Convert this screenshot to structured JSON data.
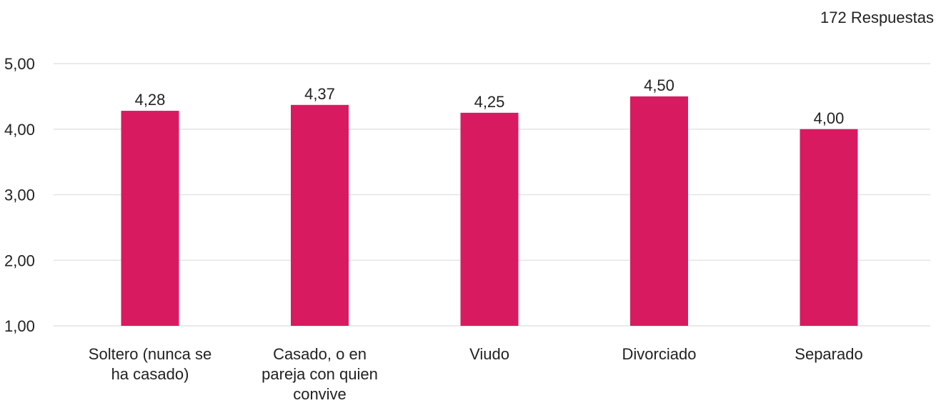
{
  "header": {
    "responses": "172 Respuestas"
  },
  "chart_data": {
    "type": "bar",
    "title": "",
    "xlabel": "",
    "ylabel": "",
    "categories": [
      [
        "Soltero (nunca se",
        "ha casado)"
      ],
      [
        "Casado, o en",
        "pareja con quien",
        "convive"
      ],
      [
        "Viudo"
      ],
      [
        "Divorciado"
      ],
      [
        "Separado"
      ]
    ],
    "values": [
      4.28,
      4.37,
      4.25,
      4.5,
      4.0
    ],
    "value_labels": [
      "4,28",
      "4,37",
      "4,25",
      "4,50",
      "4,00"
    ],
    "ylim": [
      1,
      5
    ],
    "yticks": [
      1,
      2,
      3,
      4,
      5
    ],
    "ytick_labels": [
      "1,00",
      "2,00",
      "3,00",
      "4,00",
      "5,00"
    ],
    "grid": true,
    "legend": "none",
    "bar_color": "#d81b60"
  }
}
